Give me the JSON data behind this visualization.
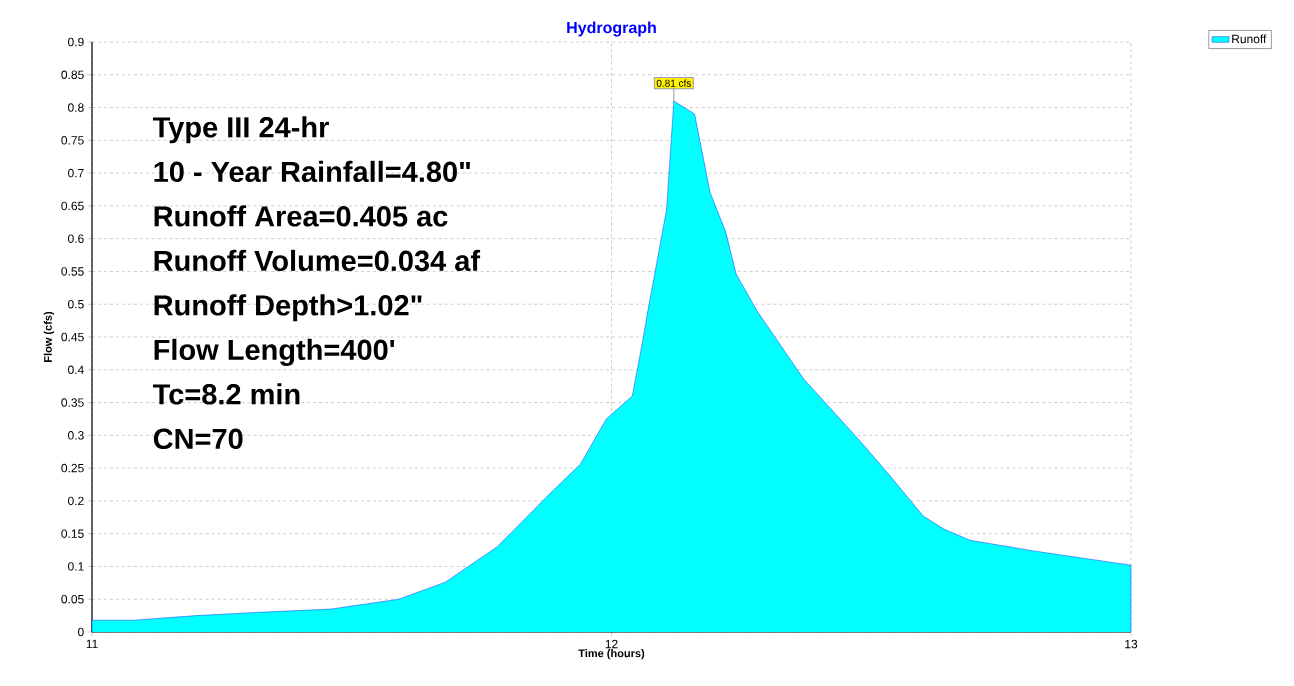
{
  "chart_data": {
    "type": "area",
    "title": "Hydrograph",
    "xlabel": "Time  (hours)",
    "ylabel": "Flow  (cfs)",
    "x": [
      11.0,
      11.08,
      11.2,
      11.32,
      11.46,
      11.59,
      11.68,
      11.78,
      11.88,
      11.94,
      11.99,
      12.04,
      12.06,
      12.07,
      12.106,
      12.12,
      12.16,
      12.19,
      12.22,
      12.24,
      12.28,
      12.37,
      12.48,
      12.53,
      12.6,
      12.64,
      12.69,
      12.81,
      13.0
    ],
    "series": [
      {
        "name": "Runoff",
        "color": "#00ffff",
        "values": [
          0.018,
          0.018,
          0.025,
          0.03,
          0.035,
          0.05,
          0.076,
          0.13,
          0.21,
          0.256,
          0.325,
          0.36,
          0.444,
          0.49,
          0.644,
          0.81,
          0.79,
          0.67,
          0.61,
          0.546,
          0.49,
          0.386,
          0.29,
          0.244,
          0.177,
          0.157,
          0.14,
          0.124,
          0.102
        ]
      }
    ],
    "xlim": [
      11,
      13
    ],
    "ylim": [
      0,
      0.9
    ],
    "xticks": [
      11,
      12,
      13
    ],
    "yticks": [
      0,
      0.05,
      0.1,
      0.15,
      0.2,
      0.25,
      0.3,
      0.35,
      0.4,
      0.45,
      0.5,
      0.55,
      0.6,
      0.65,
      0.7,
      0.75,
      0.8,
      0.85,
      0.9
    ],
    "grid": true,
    "legend": "top right",
    "annotations": [
      "Type III 24-hr",
      "10 - Year Rainfall=4.80\"",
      "Runoff Area=0.405 ac",
      "Runoff Volume=0.034 af",
      "Runoff Depth>1.02\"",
      "Flow Length=400'",
      "Tc=8.2 min",
      "CN=70",
      {
        "text": "0.81 cfs",
        "x": 12.12,
        "y": 0.81
      }
    ]
  }
}
